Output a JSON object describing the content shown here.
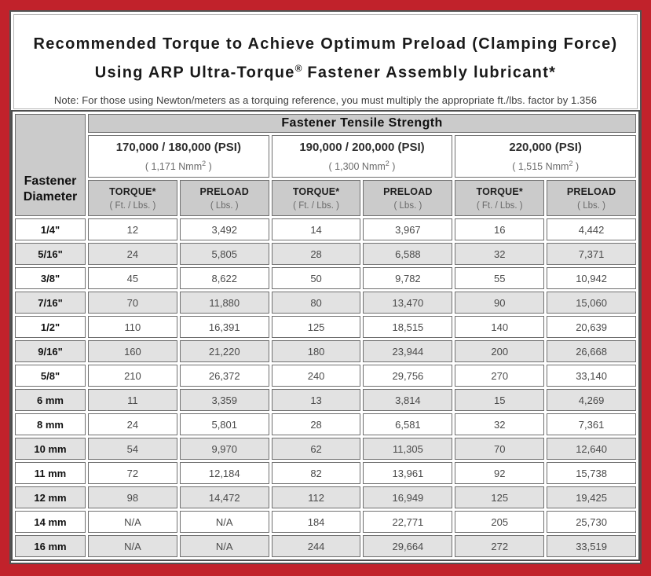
{
  "colors": {
    "frame_red": "#c1222b",
    "inner_border": "#525252",
    "header_gray": "#cbcbcb",
    "alt_row_gray": "#e2e2e2"
  },
  "title": {
    "line1": "Recommended Torque to Achieve Optimum Preload (Clamping Force)",
    "line2_a": "Using ARP Ultra-Torque",
    "line2_reg": "®",
    "line2_b": " Fastener Assembly lubricant*",
    "note": "Note: For those using Newton/meters as a torquing reference, you must multiply the appropriate ft./lbs. factor by 1.356"
  },
  "table": {
    "corner_line1": "Fastener",
    "corner_line2": "Diameter",
    "main_header": "Fastener Tensile Strength",
    "groups": [
      {
        "psi": "170,000 / 180,000 (PSI)",
        "nmm_a": "( 1,171 Nmm",
        "nmm_sup": "2",
        "nmm_b": " )"
      },
      {
        "psi": "190,000 / 200,000 (PSI)",
        "nmm_a": "( 1,300 Nmm",
        "nmm_sup": "2",
        "nmm_b": " )"
      },
      {
        "psi": "220,000 (PSI)",
        "nmm_a": "( 1,515 Nmm",
        "nmm_sup": "2",
        "nmm_b": " )"
      }
    ],
    "sub": {
      "torque": "TORQUE*",
      "torque_unit": "( Ft. / Lbs. )",
      "preload": "PRELOAD",
      "preload_unit": "( Lbs. )"
    },
    "rows": [
      [
        "1/4\"",
        "12",
        "3,492",
        "14",
        "3,967",
        "16",
        "4,442"
      ],
      [
        "5/16\"",
        "24",
        "5,805",
        "28",
        "6,588",
        "32",
        "7,371"
      ],
      [
        "3/8\"",
        "45",
        "8,622",
        "50",
        "9,782",
        "55",
        "10,942"
      ],
      [
        "7/16\"",
        "70",
        "11,880",
        "80",
        "13,470",
        "90",
        "15,060"
      ],
      [
        "1/2\"",
        "110",
        "16,391",
        "125",
        "18,515",
        "140",
        "20,639"
      ],
      [
        "9/16\"",
        "160",
        "21,220",
        "180",
        "23,944",
        "200",
        "26,668"
      ],
      [
        "5/8\"",
        "210",
        "26,372",
        "240",
        "29,756",
        "270",
        "33,140"
      ],
      [
        "6 mm",
        "11",
        "3,359",
        "13",
        "3,814",
        "15",
        "4,269"
      ],
      [
        "8 mm",
        "24",
        "5,801",
        "28",
        "6,581",
        "32",
        "7,361"
      ],
      [
        "10 mm",
        "54",
        "9,970",
        "62",
        "11,305",
        "70",
        "12,640"
      ],
      [
        "11 mm",
        "72",
        "12,184",
        "82",
        "13,961",
        "92",
        "15,738"
      ],
      [
        "12 mm",
        "98",
        "14,472",
        "112",
        "16,949",
        "125",
        "19,425"
      ],
      [
        "14 mm",
        "N/A",
        "N/A",
        "184",
        "22,771",
        "205",
        "25,730"
      ],
      [
        "16 mm",
        "N/A",
        "N/A",
        "244",
        "29,664",
        "272",
        "33,519"
      ]
    ]
  }
}
